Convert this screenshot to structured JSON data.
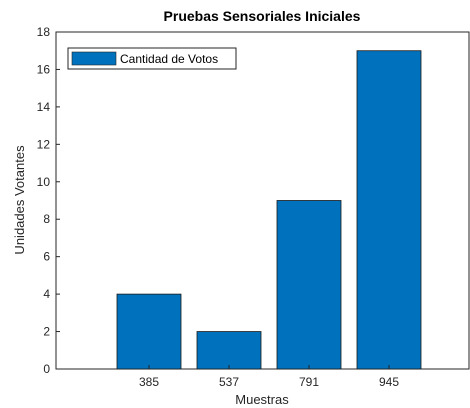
{
  "chart_data": {
    "type": "bar",
    "title": "Pruebas Sensoriales Iniciales",
    "xlabel": "Muestras",
    "ylabel": "Unidades Votantes",
    "categories": [
      "385",
      "537",
      "791",
      "945"
    ],
    "series": [
      {
        "name": "Cantidad de Votos",
        "values": [
          4,
          2,
          9,
          17
        ],
        "color": "#0072BD"
      }
    ],
    "ylim": [
      0,
      18
    ],
    "yticks": [
      0,
      2,
      4,
      6,
      8,
      10,
      12,
      14,
      16,
      18
    ],
    "grid": false,
    "legend_position": "top-left",
    "bar_color": "#0072BD",
    "axis_color": "#262626"
  }
}
